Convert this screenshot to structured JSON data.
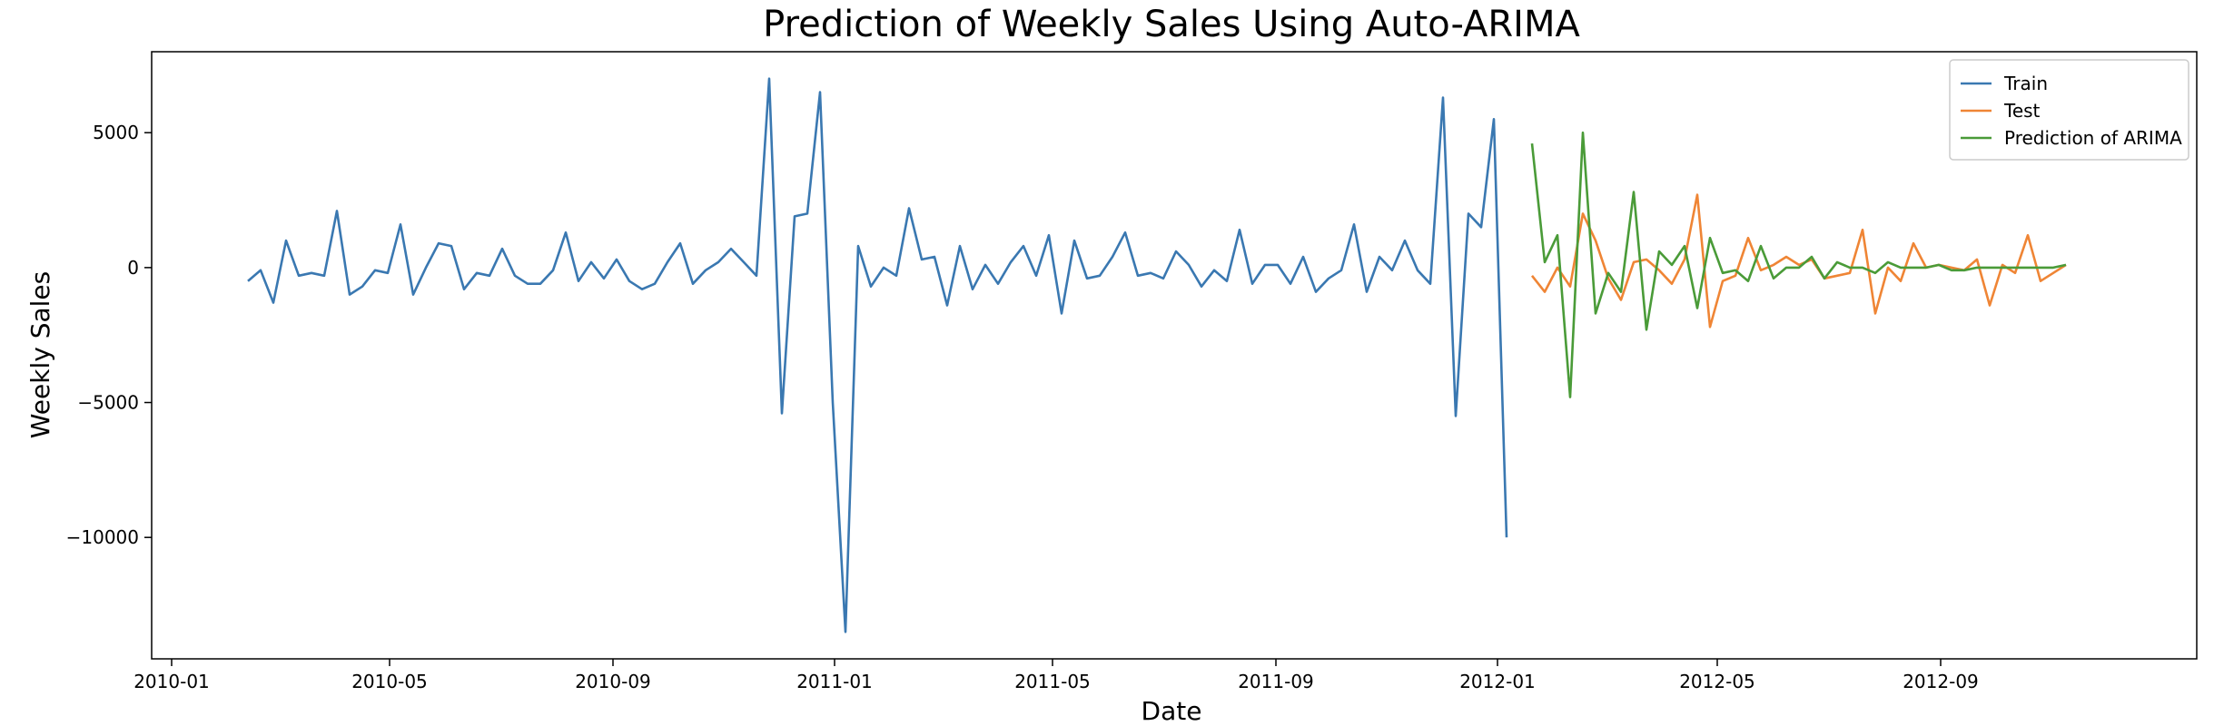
{
  "chart_data": {
    "type": "line",
    "title": "Prediction of Weekly Sales Using Auto-ARIMA",
    "xlabel": "Date",
    "ylabel": "Weekly Sales",
    "x_axis": "date",
    "xlim": [
      "2009-12-21",
      "2013-01-20"
    ],
    "ylim": [
      -14500,
      8000
    ],
    "x_ticks": [
      "2010-01-01",
      "2010-05-01",
      "2010-09-01",
      "2011-01-01",
      "2011-05-01",
      "2011-09-01",
      "2012-01-01",
      "2012-05-01",
      "2012-09-01"
    ],
    "x_tick_labels": [
      "2010-01",
      "2010-05",
      "2010-09",
      "2011-01",
      "2011-05",
      "2011-09",
      "2012-01",
      "2012-05",
      "2012-09"
    ],
    "y_ticks": [
      5000,
      0,
      -5000,
      -10000
    ],
    "y_tick_labels": [
      "5000",
      "0",
      "−5000",
      "−10000"
    ],
    "grid": false,
    "legend_position": "top-right",
    "series": [
      {
        "name": "Train",
        "color": "#3a78b1",
        "start_date": "2010-02-12",
        "step_days": 7,
        "values": [
          -500,
          -100,
          -1300,
          1000,
          -300,
          -200,
          -300,
          2100,
          -1000,
          -700,
          -100,
          -200,
          1600,
          -1000,
          0,
          900,
          800,
          -800,
          -200,
          -300,
          700,
          -300,
          -600,
          -600,
          -100,
          1300,
          -500,
          200,
          -400,
          300,
          -500,
          -800,
          -600,
          200,
          900,
          -600,
          -100,
          200,
          700,
          200,
          -300,
          7000,
          -5400,
          1900,
          2000,
          6500,
          -5000,
          -13500,
          800,
          -700,
          0,
          -300,
          2200,
          300,
          400,
          -1400,
          800,
          -800,
          100,
          -600,
          200,
          800,
          -300,
          1200,
          -1700,
          1000,
          -400,
          -300,
          400,
          1300,
          -300,
          -200,
          -400,
          600,
          100,
          -700,
          -100,
          -500,
          1400,
          -600,
          100,
          100,
          -600,
          400,
          -900,
          -400,
          -100,
          1600,
          -900,
          400,
          -100,
          1000,
          -100,
          -600,
          6300,
          -5500,
          2000,
          1500,
          5500,
          -10000
        ]
      },
      {
        "name": "Test",
        "color": "#ef8535",
        "start_date": "2012-01-20",
        "step_days": 7,
        "values": [
          -300,
          -900,
          0,
          -700,
          2000,
          1000,
          -400,
          -1200,
          200,
          300,
          -100,
          -600,
          300,
          2700,
          -2200,
          -500,
          -300,
          1100,
          -100,
          100,
          400,
          100,
          300,
          -400,
          -300,
          -200,
          1400,
          -1700,
          0,
          -500,
          900,
          0,
          100,
          0,
          -100,
          300,
          -1400,
          100,
          -200,
          1200,
          -500,
          -200,
          100
        ]
      },
      {
        "name": "Prediction of ARIMA",
        "color": "#4a9b38",
        "start_date": "2012-01-20",
        "step_days": 7,
        "values": [
          4600,
          200,
          1200,
          -4800,
          5000,
          -1700,
          -200,
          -900,
          2800,
          -2300,
          600,
          100,
          800,
          -1500,
          1100,
          -200,
          -100,
          -500,
          800,
          -400,
          0,
          0,
          400,
          -400,
          200,
          0,
          0,
          -200,
          200,
          0,
          0,
          0,
          100,
          -100,
          -100,
          0,
          0,
          0,
          0,
          0,
          0,
          0,
          100
        ]
      }
    ]
  }
}
